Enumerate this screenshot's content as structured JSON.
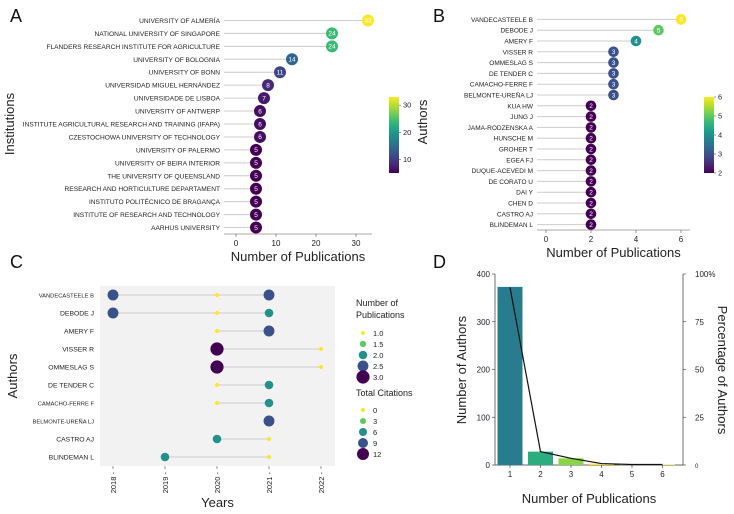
{
  "colors": {
    "viridis": [
      "#440154",
      "#482878",
      "#3e4989",
      "#31688e",
      "#26828e",
      "#1f9e89",
      "#35b779",
      "#6ece58",
      "#b5de2b",
      "#fde725"
    ],
    "panel_bg": "#f2f2f2",
    "stem": "#cccccc"
  },
  "chart_data": [
    {
      "panel": "A",
      "type": "lollipop",
      "ylabel": "Institutions",
      "xlabel": "Number of Publications",
      "xlim": [
        -3,
        34
      ],
      "xticks": [
        0,
        10,
        20,
        30
      ],
      "categories": [
        "UNIVERSITY OF ALMERÍA",
        "NATIONAL UNIVERSITY OF SINGAPORE",
        "FLANDERS RESEARCH INSTITUTE FOR AGRICULTURE",
        "UNIVERSITY OF BOLOGNIA",
        "UNIVERSITY OF BONN",
        "UNIVERSIDAD MIGUEL HERNÁNDEZ",
        "UNIVERSIDADE DE LISBOA",
        "UNIVERSITY OF ANTWERP",
        "INSTITUTE AGRICULTURAL RESEARCH AND TRAINING (IFAPA)",
        "CZESTOCHOWA UNIVERSITY OF TECHNOLOGY",
        "UNIVERSITY OF PALERMO",
        "UNIVERSITY OF BEIRA INTERIOR",
        "THE UNIVERSITY OF QUEENSLAND",
        "RESEARCH AND HORTICULTURE DEPARTAMENT",
        "INSTITUTO POLITÉCNICO DE BRAGANÇA",
        "INSTITUTE OF RESEARCH AND TECHNOLOGY",
        "AARHUS UNIVERSITY"
      ],
      "values": [
        33,
        24,
        24,
        14,
        11,
        8,
        7,
        6,
        6,
        6,
        5,
        5,
        5,
        5,
        5,
        5,
        5
      ],
      "colorbar": {
        "min": 5,
        "max": 33,
        "ticks": [
          10,
          20,
          30
        ]
      }
    },
    {
      "panel": "B",
      "type": "lollipop",
      "ylabel": "Authors",
      "xlabel": "Number of Publications",
      "xlim": [
        -0.4,
        6.4
      ],
      "xticks": [
        0,
        2,
        4,
        6
      ],
      "categories": [
        "VANDECASTEELE B",
        "DEBODE J",
        "AMERY F",
        "VISSER R",
        "OMMESLAG S",
        "DE TENDER C",
        "CAMACHO-FERRE F",
        "BELMONTE-UREÑA LJ",
        "KUA HW",
        "JUNG J",
        "JAMA-RODZENSKA A",
        "HUNSCHE M",
        "GROHER T",
        "EGEA FJ",
        "DUQUE-ACEVEDI M",
        "DE CORATO U",
        "DAI Y",
        "CHEN D",
        "CASTRO AJ",
        "BLINDEMAN L"
      ],
      "values": [
        6,
        5,
        4,
        3,
        3,
        3,
        3,
        3,
        2,
        2,
        2,
        2,
        2,
        2,
        2,
        2,
        2,
        2,
        2,
        2
      ],
      "colorbar": {
        "min": 2,
        "max": 6,
        "ticks": [
          2,
          3,
          4,
          5,
          6
        ]
      }
    },
    {
      "panel": "C",
      "type": "timeline_scatter",
      "ylabel": "Authors",
      "xlabel": "Years",
      "x_ticks": [
        "2018",
        "2019",
        "2020",
        "2021",
        "2022"
      ],
      "categories": [
        "VANDECASTEELE B",
        "DEBODE J",
        "AMERY F",
        "VISSER R",
        "OMMESLAG S",
        "DE TENDER C",
        "CAMACHO-FERRE F",
        "BELMONTE-UREÑA LJ",
        "CASTRO AJ",
        "BLINDEMAN L"
      ],
      "spans": [
        [
          2018,
          2021
        ],
        [
          2018,
          2021
        ],
        [
          2020,
          2021
        ],
        [
          2020,
          2022
        ],
        [
          2020,
          2022
        ],
        [
          2020,
          2021
        ],
        [
          2020,
          2021
        ],
        [
          2021,
          2021
        ],
        [
          2020,
          2021
        ],
        [
          2019,
          2021
        ]
      ],
      "points": [
        {
          "author": "VANDECASTEELE B",
          "year": 2018,
          "pubs": 2.5,
          "cites": 9
        },
        {
          "author": "VANDECASTEELE B",
          "year": 2020,
          "pubs": 1,
          "cites": 0
        },
        {
          "author": "VANDECASTEELE B",
          "year": 2021,
          "pubs": 2.5,
          "cites": 9
        },
        {
          "author": "DEBODE J",
          "year": 2018,
          "pubs": 2.5,
          "cites": 9
        },
        {
          "author": "DEBODE J",
          "year": 2020,
          "pubs": 1,
          "cites": 0
        },
        {
          "author": "DEBODE J",
          "year": 2021,
          "pubs": 2,
          "cites": 6
        },
        {
          "author": "AMERY F",
          "year": 2020,
          "pubs": 1,
          "cites": 0
        },
        {
          "author": "AMERY F",
          "year": 2021,
          "pubs": 2.5,
          "cites": 9
        },
        {
          "author": "VISSER R",
          "year": 2020,
          "pubs": 3,
          "cites": 12
        },
        {
          "author": "VISSER R",
          "year": 2022,
          "pubs": 1,
          "cites": 0
        },
        {
          "author": "OMMESLAG S",
          "year": 2020,
          "pubs": 3,
          "cites": 12
        },
        {
          "author": "OMMESLAG S",
          "year": 2022,
          "pubs": 1,
          "cites": 0
        },
        {
          "author": "DE TENDER C",
          "year": 2020,
          "pubs": 1,
          "cites": 0
        },
        {
          "author": "DE TENDER C",
          "year": 2021,
          "pubs": 2,
          "cites": 6
        },
        {
          "author": "CAMACHO-FERRE F",
          "year": 2020,
          "pubs": 1,
          "cites": 0
        },
        {
          "author": "CAMACHO-FERRE F",
          "year": 2021,
          "pubs": 2,
          "cites": 6
        },
        {
          "author": "BELMONTE-UREÑA LJ",
          "year": 2021,
          "pubs": 2.5,
          "cites": 9
        },
        {
          "author": "CASTRO AJ",
          "year": 2020,
          "pubs": 2,
          "cites": 6
        },
        {
          "author": "CASTRO AJ",
          "year": 2021,
          "pubs": 1,
          "cites": 0
        },
        {
          "author": "BLINDEMAN L",
          "year": 2019,
          "pubs": 2,
          "cites": 6
        },
        {
          "author": "BLINDEMAN L",
          "year": 2021,
          "pubs": 1,
          "cites": 0
        }
      ],
      "legend_size_title": "Number of Publications",
      "legend_size_values": [
        "1.0",
        "1.5",
        "2.0",
        "2.5",
        "3.0"
      ],
      "legend_color_title": "Total Citations",
      "legend_color_values": [
        "0",
        "3",
        "6",
        "9",
        "12"
      ]
    },
    {
      "panel": "D",
      "type": "bar_line",
      "categories": [
        1,
        2,
        3,
        4,
        5,
        6
      ],
      "values": [
        373,
        28,
        14,
        3,
        1,
        1
      ],
      "percent": [
        93,
        7,
        3.5,
        0.75,
        0.25,
        0.25
      ],
      "xlabel": "Number of Publications",
      "ylabel": "Number of Authors",
      "ylabel_right": "Percentage of Authors",
      "ylim": [
        0,
        400
      ],
      "yticks": [
        0,
        100,
        200,
        300,
        400
      ],
      "ylim_right": [
        0,
        100
      ],
      "yticks_right": [
        "0",
        "25",
        "50",
        "75",
        "100%"
      ]
    }
  ]
}
